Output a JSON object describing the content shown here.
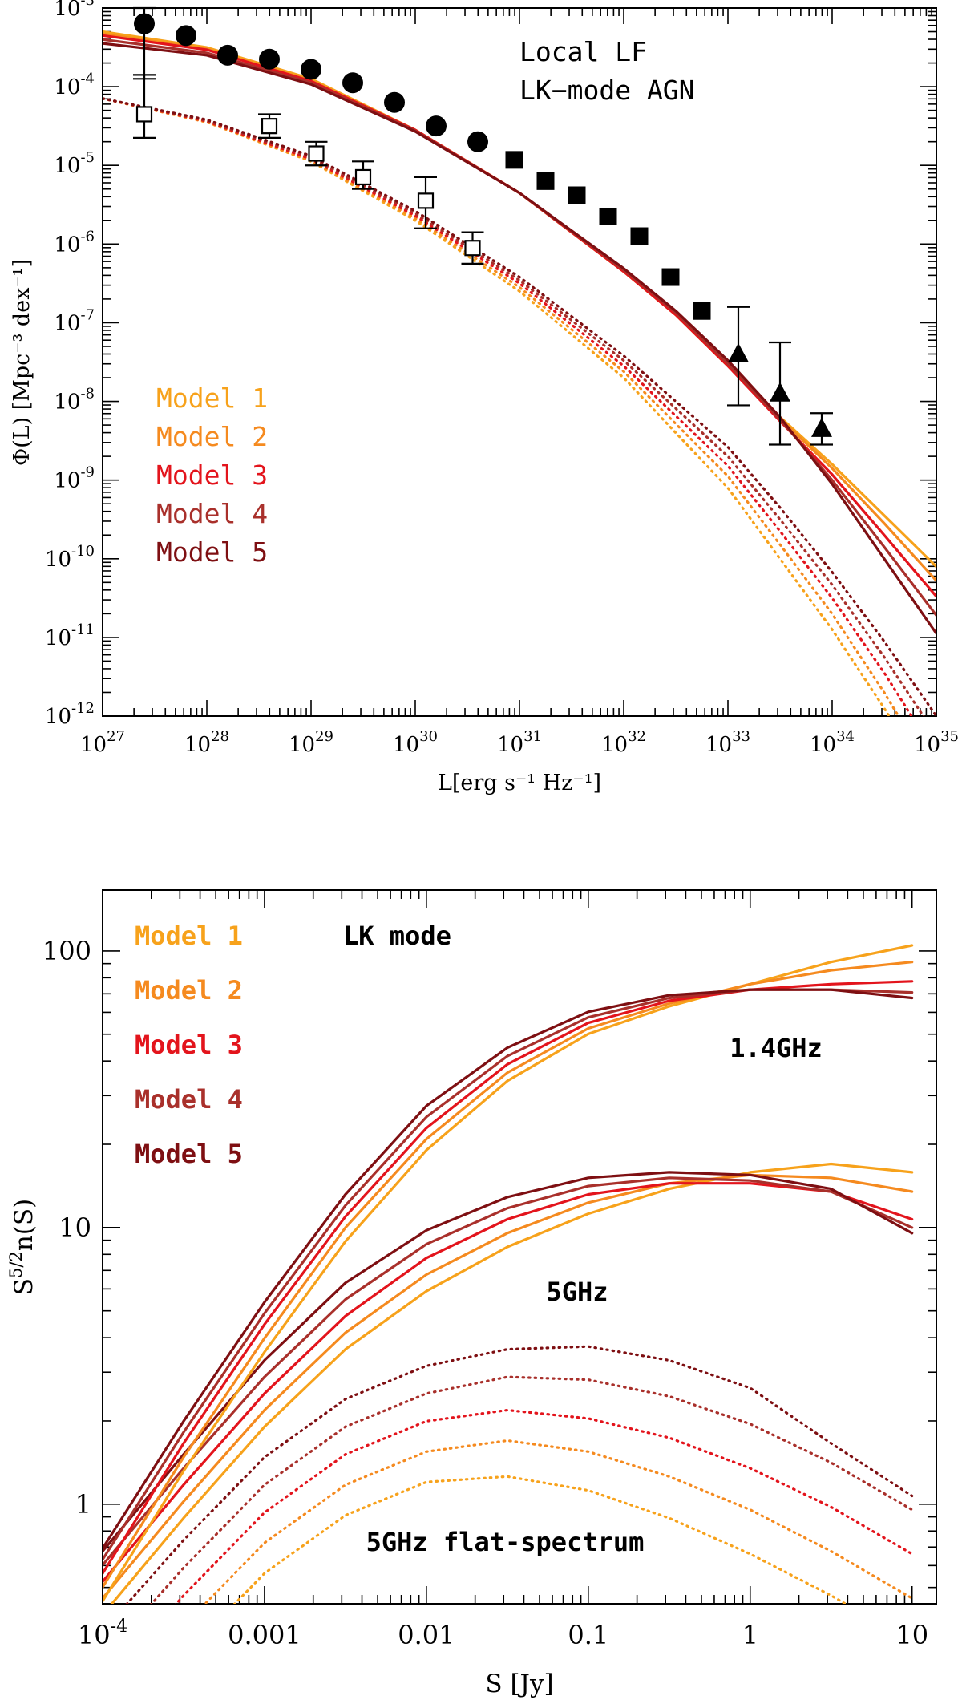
{
  "colors": {
    "model1": "#F7A21B",
    "model2": "#F58A1F",
    "model3": "#E3141C",
    "model4": "#A9302B",
    "model5": "#7E0F12",
    "axis": "#000000"
  },
  "chart_data": [
    {
      "type": "line",
      "panel": "top",
      "title": "Local LF",
      "subtitle": "LK−mode AGN",
      "xlabel": "L[erg s⁻¹ Hz⁻¹]",
      "ylabel": "Φ(L) [Mpc⁻³ dex⁻¹]",
      "xscale": "log",
      "yscale": "log",
      "xlim_log10": [
        27,
        35
      ],
      "ylim_log10": [
        -12,
        -3
      ],
      "x_tick_labels": [
        {
          "base": "10",
          "exp": "27"
        },
        {
          "base": "10",
          "exp": "28"
        },
        {
          "base": "10",
          "exp": "29"
        },
        {
          "base": "10",
          "exp": "30"
        },
        {
          "base": "10",
          "exp": "31"
        },
        {
          "base": "10",
          "exp": "32"
        },
        {
          "base": "10",
          "exp": "33"
        },
        {
          "base": "10",
          "exp": "34"
        },
        {
          "base": "10",
          "exp": "35"
        }
      ],
      "y_tick_labels": [
        {
          "base": "10",
          "exp": "-3"
        },
        {
          "base": "10",
          "exp": "-4"
        },
        {
          "base": "10",
          "exp": "-5"
        },
        {
          "base": "10",
          "exp": "-6"
        },
        {
          "base": "10",
          "exp": "-7"
        },
        {
          "base": "10",
          "exp": "-8"
        },
        {
          "base": "10",
          "exp": "-9"
        },
        {
          "base": "10",
          "exp": "-10"
        },
        {
          "base": "10",
          "exp": "-11"
        },
        {
          "base": "10",
          "exp": "-12"
        }
      ],
      "legend": [
        "Model 1",
        "Model 2",
        "Model 3",
        "Model 4",
        "Model 5"
      ],
      "legend_position": "middle-left",
      "note": "values are log10(L) and log10(Phi)",
      "series_solid": [
        {
          "name": "Model 1",
          "x": [
            27,
            28,
            29,
            30,
            31,
            31.5,
            32,
            32.5,
            33,
            33.5,
            34,
            34.5,
            35
          ],
          "y": [
            -3.3,
            -3.5,
            -3.9,
            -4.55,
            -5.35,
            -5.85,
            -6.35,
            -6.9,
            -7.55,
            -8.2,
            -8.8,
            -9.45,
            -10.1
          ]
        },
        {
          "name": "Model 2",
          "x": [
            27,
            28,
            29,
            30,
            31,
            31.5,
            32,
            32.5,
            33,
            33.5,
            34,
            34.5,
            35
          ],
          "y": [
            -3.33,
            -3.52,
            -3.92,
            -4.55,
            -5.35,
            -5.85,
            -6.35,
            -6.9,
            -7.55,
            -8.22,
            -8.85,
            -9.55,
            -10.28
          ]
        },
        {
          "name": "Model 3",
          "x": [
            27,
            28,
            29,
            30,
            31,
            31.5,
            32,
            32.5,
            33,
            33.5,
            34,
            34.5,
            35
          ],
          "y": [
            -3.35,
            -3.53,
            -3.93,
            -4.55,
            -5.35,
            -5.85,
            -6.35,
            -6.9,
            -7.55,
            -8.25,
            -8.93,
            -9.7,
            -10.48
          ]
        },
        {
          "name": "Model 4",
          "x": [
            27,
            28,
            29,
            30,
            31,
            31.5,
            32,
            32.5,
            33,
            33.5,
            34,
            34.5,
            35
          ],
          "y": [
            -3.4,
            -3.57,
            -3.95,
            -4.56,
            -5.35,
            -5.84,
            -6.33,
            -6.87,
            -7.52,
            -8.23,
            -9.0,
            -9.85,
            -10.72
          ]
        },
        {
          "name": "Model 5",
          "x": [
            27,
            28,
            29,
            30,
            31,
            31.5,
            32,
            32.5,
            33,
            33.5,
            34,
            34.5,
            35
          ],
          "y": [
            -3.45,
            -3.6,
            -3.97,
            -4.57,
            -5.35,
            -5.83,
            -6.31,
            -6.85,
            -7.48,
            -8.2,
            -9.05,
            -10.0,
            -10.95
          ]
        }
      ],
      "series_dotted": [
        {
          "name": "Model 1",
          "x": [
            27,
            28,
            29,
            30,
            31,
            32,
            33,
            33.5,
            34,
            34.5,
            35
          ],
          "y": [
            -4.15,
            -4.45,
            -4.95,
            -5.7,
            -6.6,
            -7.7,
            -9.1,
            -10.0,
            -10.9,
            -11.9,
            -13.0
          ]
        },
        {
          "name": "Model 2",
          "x": [
            27,
            28,
            29,
            30,
            31,
            32,
            33,
            33.5,
            34,
            34.5,
            35
          ],
          "y": [
            -4.15,
            -4.45,
            -4.94,
            -5.67,
            -6.55,
            -7.62,
            -8.95,
            -9.82,
            -10.7,
            -11.7,
            -12.8
          ]
        },
        {
          "name": "Model 3",
          "x": [
            27,
            28,
            29,
            30,
            31,
            32,
            33,
            33.5,
            34,
            34.5,
            35
          ],
          "y": [
            -4.15,
            -4.44,
            -4.92,
            -5.64,
            -6.5,
            -7.55,
            -8.82,
            -9.65,
            -10.5,
            -11.45,
            -12.5
          ]
        },
        {
          "name": "Model 4",
          "x": [
            27,
            28,
            29,
            30,
            31,
            32,
            33,
            33.5,
            34,
            34.5,
            35
          ],
          "y": [
            -4.15,
            -4.43,
            -4.9,
            -5.61,
            -6.46,
            -7.48,
            -8.7,
            -9.5,
            -10.33,
            -11.25,
            -12.25
          ]
        },
        {
          "name": "Model 5",
          "x": [
            27,
            28,
            29,
            30,
            31,
            32,
            33,
            33.5,
            34,
            34.5,
            35
          ],
          "y": [
            -4.15,
            -4.42,
            -4.88,
            -5.58,
            -6.42,
            -7.42,
            -8.58,
            -9.35,
            -10.17,
            -11.05,
            -12.0
          ]
        }
      ],
      "data_filled_circles": [
        {
          "x": 27.4,
          "y": -3.2,
          "ylo": -3.9,
          "yhi": -3.0
        },
        {
          "x": 27.8,
          "y": -3.35
        },
        {
          "x": 28.2,
          "y": -3.6
        },
        {
          "x": 28.6,
          "y": -3.65
        },
        {
          "x": 29.0,
          "y": -3.78
        },
        {
          "x": 29.4,
          "y": -3.95
        },
        {
          "x": 29.8,
          "y": -4.2
        },
        {
          "x": 30.2,
          "y": -4.5
        },
        {
          "x": 30.6,
          "y": -4.7
        }
      ],
      "data_filled_squares": [
        {
          "x": 30.95,
          "y": -4.93
        },
        {
          "x": 31.25,
          "y": -5.2
        },
        {
          "x": 31.55,
          "y": -5.38
        },
        {
          "x": 31.85,
          "y": -5.65
        },
        {
          "x": 32.15,
          "y": -5.9
        },
        {
          "x": 32.45,
          "y": -6.42
        },
        {
          "x": 32.75,
          "y": -6.85
        }
      ],
      "data_filled_triangles": [
        {
          "x": 33.1,
          "y": -7.4,
          "ylo": -8.05,
          "yhi": -6.8
        },
        {
          "x": 33.5,
          "y": -7.9,
          "ylo": -8.55,
          "yhi": -7.25
        },
        {
          "x": 33.9,
          "y": -8.35,
          "ylo": -8.55,
          "yhi": -8.15
        }
      ],
      "data_open_squares": [
        {
          "x": 27.4,
          "y": -4.35,
          "ylo": -4.65,
          "yhi": -3.85
        },
        {
          "x": 28.6,
          "y": -4.5,
          "ylo": -4.65,
          "yhi": -4.35
        },
        {
          "x": 29.05,
          "y": -4.85,
          "ylo": -5.0,
          "yhi": -4.7
        },
        {
          "x": 29.5,
          "y": -5.15,
          "ylo": -5.3,
          "yhi": -4.95
        },
        {
          "x": 30.1,
          "y": -5.45,
          "ylo": -5.8,
          "yhi": -5.15
        },
        {
          "x": 30.55,
          "y": -6.05,
          "ylo": -6.25,
          "yhi": -5.85
        }
      ]
    },
    {
      "type": "line",
      "panel": "bottom",
      "annotation": "LK mode",
      "xlabel": "S [Jy]",
      "ylabel": "S^{5/2}n(S)",
      "xscale": "log",
      "yscale": "log",
      "xlim_log10": [
        -4,
        1.15
      ],
      "ylim_log10": [
        -0.36,
        2.22
      ],
      "x_tick_labels": [
        {
          "base": "10",
          "exp": "-4"
        },
        {
          "base": "0.001",
          "exp": ""
        },
        {
          "base": "0.01",
          "exp": ""
        },
        {
          "base": "0.1",
          "exp": ""
        },
        {
          "base": "1",
          "exp": ""
        },
        {
          "base": "10",
          "exp": ""
        }
      ],
      "y_tick_labels": [
        "1",
        "10",
        "100"
      ],
      "legend": [
        "Model 1",
        "Model 2",
        "Model 3",
        "Model 4",
        "Model 5"
      ],
      "legend_position": "top-left",
      "labels": {
        "band1": "1.4GHz",
        "band2": "5GHz",
        "band3": "5GHz flat-spectrum"
      },
      "note": "values are log10(S) and log10(S^{5/2}n(S))",
      "series_1p4GHz": [
        {
          "name": "Model 1",
          "x": [
            -4,
            -3.5,
            -3,
            -2.5,
            -2,
            -1.5,
            -1,
            -0.5,
            0,
            0.5,
            1
          ],
          "y": [
            -0.35,
            0.12,
            0.55,
            0.95,
            1.28,
            1.53,
            1.7,
            1.8,
            1.88,
            1.96,
            2.02
          ]
        },
        {
          "name": "Model 2",
          "x": [
            -4,
            -3.5,
            -3,
            -2.5,
            -2,
            -1.5,
            -1,
            -0.5,
            0,
            0.5,
            1
          ],
          "y": [
            -0.3,
            0.17,
            0.6,
            1.0,
            1.32,
            1.56,
            1.72,
            1.81,
            1.88,
            1.93,
            1.96
          ]
        },
        {
          "name": "Model 3",
          "x": [
            -4,
            -3.5,
            -3,
            -2.5,
            -2,
            -1.5,
            -1,
            -0.5,
            0,
            0.5,
            1
          ],
          "y": [
            -0.25,
            0.22,
            0.65,
            1.04,
            1.36,
            1.59,
            1.74,
            1.82,
            1.86,
            1.88,
            1.89
          ]
        },
        {
          "name": "Model 4",
          "x": [
            -4,
            -3.5,
            -3,
            -2.5,
            -2,
            -1.5,
            -1,
            -0.5,
            0,
            0.5,
            1
          ],
          "y": [
            -0.2,
            0.26,
            0.69,
            1.08,
            1.4,
            1.62,
            1.76,
            1.83,
            1.86,
            1.86,
            1.85
          ]
        },
        {
          "name": "Model 5",
          "x": [
            -4,
            -3.5,
            -3,
            -2.5,
            -2,
            -1.5,
            -1,
            -0.5,
            0,
            0.5,
            1
          ],
          "y": [
            -0.16,
            0.3,
            0.73,
            1.12,
            1.44,
            1.65,
            1.78,
            1.84,
            1.86,
            1.86,
            1.83
          ]
        }
      ],
      "series_5GHz": [
        {
          "name": "Model 1",
          "x": [
            -4,
            -3.5,
            -3,
            -2.5,
            -2,
            -1.5,
            -1,
            -0.5,
            0,
            0.5,
            1
          ],
          "y": [
            -0.4,
            -0.05,
            0.28,
            0.56,
            0.77,
            0.93,
            1.05,
            1.14,
            1.2,
            1.23,
            1.2
          ]
        },
        {
          "name": "Model 2",
          "x": [
            -4,
            -3.5,
            -3,
            -2.5,
            -2,
            -1.5,
            -1,
            -0.5,
            0,
            0.5,
            1
          ],
          "y": [
            -0.34,
            0.01,
            0.34,
            0.62,
            0.83,
            0.98,
            1.09,
            1.16,
            1.19,
            1.18,
            1.13
          ]
        },
        {
          "name": "Model 3",
          "x": [
            -4,
            -3.5,
            -3,
            -2.5,
            -2,
            -1.5,
            -1,
            -0.5,
            0,
            0.5,
            1
          ],
          "y": [
            -0.28,
            0.07,
            0.4,
            0.68,
            0.89,
            1.03,
            1.12,
            1.16,
            1.16,
            1.13,
            1.03
          ]
        },
        {
          "name": "Model 4",
          "x": [
            -4,
            -3.5,
            -3,
            -2.5,
            -2,
            -1.5,
            -1,
            -0.5,
            0,
            0.5,
            1
          ],
          "y": [
            -0.22,
            0.13,
            0.46,
            0.74,
            0.94,
            1.07,
            1.15,
            1.18,
            1.17,
            1.13,
            1.0
          ]
        },
        {
          "name": "Model 5",
          "x": [
            -4,
            -3.5,
            -3,
            -2.5,
            -2,
            -1.5,
            -1,
            -0.5,
            0,
            0.5,
            1
          ],
          "y": [
            -0.17,
            0.18,
            0.52,
            0.8,
            0.99,
            1.11,
            1.18,
            1.2,
            1.19,
            1.14,
            0.98
          ]
        }
      ],
      "series_5GHz_flat": [
        {
          "name": "Model 1",
          "x": [
            -4,
            -3.5,
            -3,
            -2.5,
            -2,
            -1.5,
            -1,
            -0.5,
            0,
            0.5,
            1
          ],
          "y": [
            -0.9,
            -0.55,
            -0.25,
            -0.04,
            0.08,
            0.1,
            0.05,
            -0.05,
            -0.18,
            -0.33,
            -0.5
          ]
        },
        {
          "name": "Model 2",
          "x": [
            -4,
            -3.5,
            -3,
            -2.5,
            -2,
            -1.5,
            -1,
            -0.5,
            0,
            0.5,
            1
          ],
          "y": [
            -0.78,
            -0.44,
            -0.14,
            0.07,
            0.19,
            0.23,
            0.19,
            0.1,
            -0.02,
            -0.17,
            -0.34
          ]
        },
        {
          "name": "Model 3",
          "x": [
            -4,
            -3.5,
            -3,
            -2.5,
            -2,
            -1.5,
            -1,
            -0.5,
            0,
            0.5,
            1
          ],
          "y": [
            -0.66,
            -0.33,
            -0.03,
            0.18,
            0.3,
            0.34,
            0.31,
            0.24,
            0.13,
            -0.01,
            -0.18
          ]
        },
        {
          "name": "Model 4",
          "x": [
            -4,
            -3.5,
            -3,
            -2.5,
            -2,
            -1.5,
            -1,
            -0.5,
            0,
            0.5,
            1
          ],
          "y": [
            -0.56,
            -0.23,
            0.07,
            0.28,
            0.4,
            0.46,
            0.45,
            0.39,
            0.29,
            0.15,
            -0.02
          ]
        },
        {
          "name": "Model 5",
          "x": [
            -4,
            -3.5,
            -3,
            -2.5,
            -2,
            -1.5,
            -1,
            -0.5,
            0,
            0.5,
            1
          ],
          "y": [
            -0.46,
            -0.13,
            0.17,
            0.38,
            0.5,
            0.56,
            0.57,
            0.52,
            0.42,
            0.22,
            0.03
          ]
        }
      ]
    }
  ]
}
